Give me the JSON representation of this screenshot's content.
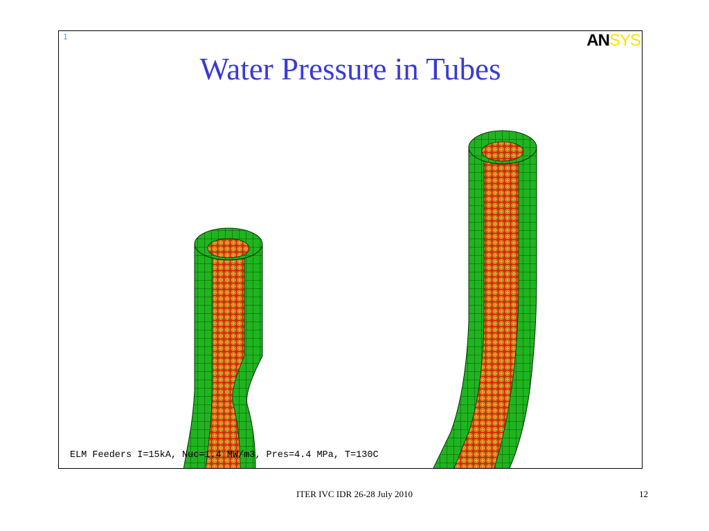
{
  "slide": {
    "title": "Water Pressure in Tubes",
    "footer": "ITER IVC IDR 26-28 July 2010",
    "page_number": "12"
  },
  "plot": {
    "window_number": "1",
    "logo": {
      "part1": "AN",
      "part2": "SYS"
    },
    "caption": "ELM Feeders I=15kA, Nuc=1.4 MW/m3, Pres=4.4 MPa, T=130C",
    "colors": {
      "tube_wall": "#1fb51f",
      "mesh_lines": "#0a2a0a",
      "pressure_arrows": "#ff1a00",
      "title": "#3a3ad6",
      "window_number": "#22b6ff",
      "logo_sys": "#ffe000"
    }
  }
}
